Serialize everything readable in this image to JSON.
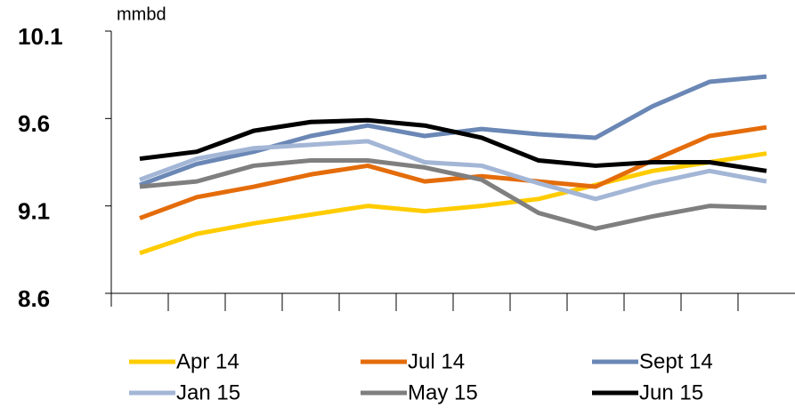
{
  "chart_data": {
    "type": "line",
    "y_label": "mmbd",
    "categories": [
      null,
      null,
      null,
      null,
      null,
      null,
      null,
      null,
      null,
      null,
      null,
      null
    ],
    "ylim": [
      8.6,
      10.1
    ],
    "yticks": [
      8.6,
      9.1,
      9.6,
      10.1
    ],
    "series": [
      {
        "name": "Apr 14",
        "color": "#FFCC00",
        "values": [
          8.83,
          8.94,
          9.0,
          9.05,
          9.1,
          9.07,
          9.1,
          9.14,
          9.22,
          9.3,
          9.35,
          9.4
        ]
      },
      {
        "name": "Jul 14",
        "color": "#E46C0A",
        "values": [
          9.03,
          9.15,
          9.21,
          9.28,
          9.33,
          9.24,
          9.27,
          9.24,
          9.21,
          9.36,
          9.5,
          9.55
        ]
      },
      {
        "name": "Sept 14",
        "color": "#6A87B5",
        "values": [
          9.22,
          9.34,
          9.41,
          9.5,
          9.56,
          9.5,
          9.54,
          9.51,
          9.49,
          9.67,
          9.81,
          9.84
        ]
      },
      {
        "name": "Jan 15",
        "color": "#A3B6D6",
        "values": [
          9.25,
          9.37,
          9.43,
          9.45,
          9.47,
          9.35,
          9.33,
          9.23,
          9.14,
          9.23,
          9.3,
          9.24
        ]
      },
      {
        "name": "May 15",
        "color": "#7F7F7F",
        "values": [
          9.21,
          9.24,
          9.33,
          9.36,
          9.36,
          9.32,
          9.25,
          9.06,
          8.97,
          9.04,
          9.1,
          9.09
        ]
      },
      {
        "name": "Jun 15",
        "color": "#000000",
        "values": [
          9.37,
          9.41,
          9.53,
          9.58,
          9.59,
          9.56,
          9.49,
          9.36,
          9.33,
          9.35,
          9.35,
          9.3
        ]
      }
    ]
  }
}
